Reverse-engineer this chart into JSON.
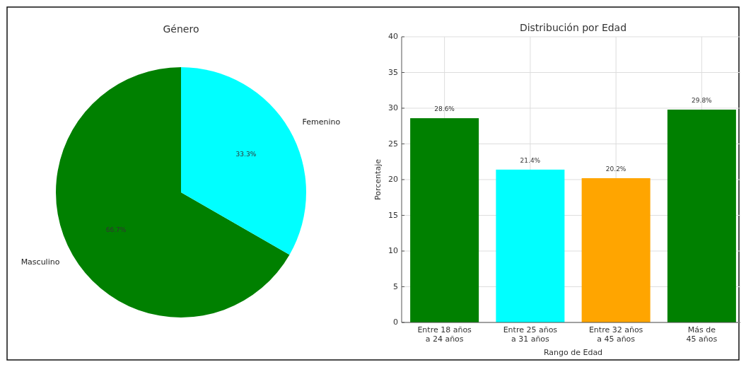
{
  "chart_data": [
    {
      "type": "pie",
      "title": "Género",
      "categories": [
        "Masculino",
        "Femenino"
      ],
      "values": [
        66.7,
        33.3
      ],
      "colors": [
        "#008000",
        "#00ffff"
      ],
      "value_labels": [
        "66.7%",
        "33.3%"
      ]
    },
    {
      "type": "bar",
      "title": "Distribución por Edad",
      "xlabel": "Rango de Edad",
      "ylabel": "Porcentaje",
      "categories": [
        "Entre 18 años a 24 años",
        "Entre 25 años a 31 años",
        "Entre 32 años a 45 años",
        "Más de 45 años"
      ],
      "values": [
        28.6,
        21.4,
        20.2,
        29.8
      ],
      "colors": [
        "#008000",
        "#00ffff",
        "#ffa500",
        "#008000"
      ],
      "value_labels": [
        "28.6%",
        "21.4%",
        "20.2%",
        "29.8%"
      ],
      "ylim": [
        0,
        40
      ],
      "yticks": [
        0,
        5,
        10,
        15,
        20,
        25,
        30,
        35,
        40
      ],
      "grid": true
    }
  ]
}
